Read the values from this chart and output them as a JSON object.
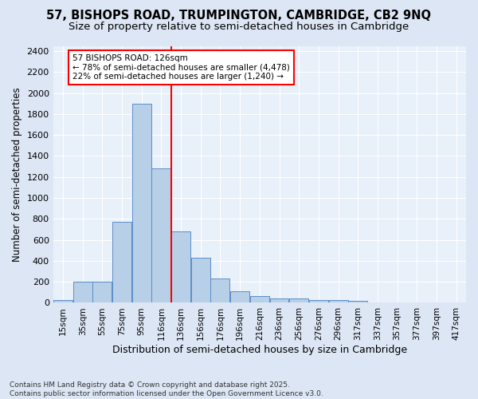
{
  "title_line1": "57, BISHOPS ROAD, TRUMPINGTON, CAMBRIDGE, CB2 9NQ",
  "title_line2": "Size of property relative to semi-detached houses in Cambridge",
  "xlabel": "Distribution of semi-detached houses by size in Cambridge",
  "ylabel": "Number of semi-detached properties",
  "footnote": "Contains HM Land Registry data © Crown copyright and database right 2025.\nContains public sector information licensed under the Open Government Licence v3.0.",
  "bin_labels": [
    "15sqm",
    "35sqm",
    "55sqm",
    "75sqm",
    "95sqm",
    "116sqm",
    "136sqm",
    "156sqm",
    "176sqm",
    "196sqm",
    "216sqm",
    "236sqm",
    "256sqm",
    "276sqm",
    "296sqm",
    "317sqm",
    "337sqm",
    "357sqm",
    "377sqm",
    "397sqm",
    "417sqm"
  ],
  "bar_values": [
    25,
    200,
    200,
    775,
    1900,
    1280,
    680,
    430,
    230,
    110,
    65,
    45,
    40,
    25,
    25,
    20,
    0,
    0,
    0,
    0,
    0
  ],
  "bar_color": "#b8cfe8",
  "bar_edge_color": "#5b8dc8",
  "vline_x_index": 5,
  "vline_color": "red",
  "annotation_text": "57 BISHOPS ROAD: 126sqm\n← 78% of semi-detached houses are smaller (4,478)\n22% of semi-detached houses are larger (1,240) →",
  "annotation_box_color": "white",
  "annotation_edge_color": "red",
  "ylim": [
    0,
    2450
  ],
  "yticks": [
    0,
    200,
    400,
    600,
    800,
    1000,
    1200,
    1400,
    1600,
    1800,
    2000,
    2200,
    2400
  ],
  "bg_color": "#dce6f5",
  "plot_bg_color": "#e8f0fa",
  "title_fontsize": 10.5,
  "subtitle_fontsize": 9.5,
  "footnote_fontsize": 6.5
}
